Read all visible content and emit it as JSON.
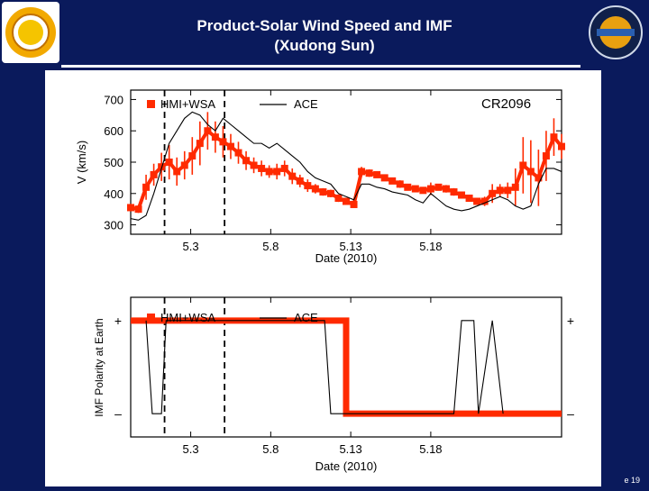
{
  "slide": {
    "title_line1": "Product-Solar Wind Speed and IMF",
    "title_line2": "(Xudong Sun)",
    "slide_number": "e 19"
  },
  "colors": {
    "background": "#0a1a5c",
    "model": "#ff2a00",
    "observed": "#000000"
  },
  "chart_data": [
    {
      "type": "line",
      "title": "",
      "annotation": "CR2096",
      "xlabel": "Date (2010)",
      "ylabel": "V (km/s)",
      "x_ticks": [
        "5.3",
        "5.8",
        "5.13",
        "5.18"
      ],
      "yticks": [
        300,
        400,
        500,
        600,
        700
      ],
      "xlim": [
        0,
        28
      ],
      "ylim": [
        270,
        730
      ],
      "vertical_dashed_lines_x": [
        2.2,
        6.1
      ],
      "legend_position": "top-left",
      "series": [
        {
          "name": "HMI+WSA",
          "color": "#ff2a00",
          "style": "square-markers-with-error-bars",
          "x": [
            0,
            0.5,
            1,
            1.5,
            2,
            2.5,
            3,
            3.5,
            4,
            4.5,
            5,
            5.5,
            6,
            6.5,
            7,
            7.5,
            8,
            8.5,
            9,
            9.5,
            10,
            10.5,
            11,
            11.5,
            12,
            12.5,
            13,
            13.5,
            14,
            14.5,
            15,
            15.5,
            16,
            16.5,
            17,
            17.5,
            18,
            18.5,
            19,
            19.5,
            20,
            20.5,
            21,
            21.5,
            22,
            22.5,
            23,
            23.5,
            24,
            24.5,
            25,
            25.5,
            26,
            26.5,
            27,
            27.5,
            28
          ],
          "y": [
            355,
            350,
            420,
            460,
            485,
            500,
            470,
            490,
            520,
            560,
            600,
            580,
            565,
            550,
            530,
            505,
            490,
            480,
            470,
            470,
            480,
            455,
            440,
            425,
            415,
            405,
            400,
            385,
            375,
            365,
            470,
            465,
            460,
            450,
            440,
            430,
            420,
            415,
            410,
            415,
            420,
            415,
            405,
            395,
            385,
            375,
            375,
            400,
            410,
            410,
            420,
            490,
            470,
            450,
            520,
            580,
            550
          ],
          "error": [
            12,
            12,
            40,
            35,
            45,
            55,
            45,
            45,
            60,
            70,
            60,
            50,
            50,
            40,
            35,
            30,
            25,
            25,
            20,
            25,
            25,
            25,
            20,
            20,
            15,
            12,
            12,
            12,
            10,
            10,
            15,
            12,
            10,
            10,
            10,
            12,
            10,
            10,
            10,
            20,
            10,
            12,
            12,
            10,
            10,
            10,
            15,
            30,
            20,
            25,
            60,
            90,
            100,
            90,
            80,
            60,
            40
          ]
        },
        {
          "name": "ACE",
          "color": "#000000",
          "style": "line",
          "x": [
            0,
            0.5,
            1,
            1.5,
            2,
            2.5,
            3,
            3.5,
            4,
            4.5,
            5,
            5.5,
            6,
            6.5,
            7,
            7.5,
            8,
            8.5,
            9,
            9.5,
            10,
            10.5,
            11,
            11.5,
            12,
            12.5,
            13,
            13.5,
            14,
            14.5,
            15,
            15.5,
            16,
            16.5,
            17,
            17.5,
            18,
            18.5,
            19,
            19.5,
            20,
            20.5,
            21,
            21.5,
            22,
            22.5,
            23,
            23.5,
            24,
            24.5,
            25,
            25.5,
            26,
            26.5,
            27,
            27.5,
            28
          ],
          "y": [
            320,
            315,
            330,
            400,
            480,
            560,
            600,
            640,
            660,
            650,
            620,
            600,
            640,
            620,
            600,
            580,
            560,
            560,
            545,
            560,
            540,
            520,
            500,
            470,
            450,
            440,
            430,
            400,
            390,
            380,
            430,
            430,
            420,
            415,
            405,
            400,
            395,
            380,
            370,
            400,
            380,
            360,
            350,
            345,
            350,
            360,
            370,
            380,
            390,
            380,
            360,
            350,
            360,
            430,
            480,
            480,
            470
          ]
        }
      ]
    },
    {
      "type": "line",
      "title": "",
      "xlabel": "Date (2010)",
      "ylabel": "IMF Polarity at Earth",
      "x_ticks": [
        "5.3",
        "5.8",
        "5.13",
        "5.18"
      ],
      "ytick_labels": [
        "+",
        "–"
      ],
      "xlim": [
        0,
        28
      ],
      "ylim": [
        -1.5,
        1.5
      ],
      "vertical_dashed_lines_x": [
        2.2,
        6.1
      ],
      "legend_position": "top-left",
      "series": [
        {
          "name": "HMI+WSA",
          "color": "#ff2a00",
          "style": "thick-line",
          "x": [
            0,
            14,
            14,
            28
          ],
          "y": [
            1,
            1,
            -1,
            -1
          ]
        },
        {
          "name": "ACE",
          "color": "#000000",
          "style": "line",
          "x": [
            1,
            1.4,
            2,
            2.3,
            12.6,
            13,
            21,
            21.5,
            22.3,
            22.6,
            23.5,
            24.2
          ],
          "y": [
            1,
            -1,
            -1,
            1,
            1,
            -1,
            -1,
            1,
            1,
            -1,
            1,
            -1
          ]
        }
      ]
    }
  ]
}
